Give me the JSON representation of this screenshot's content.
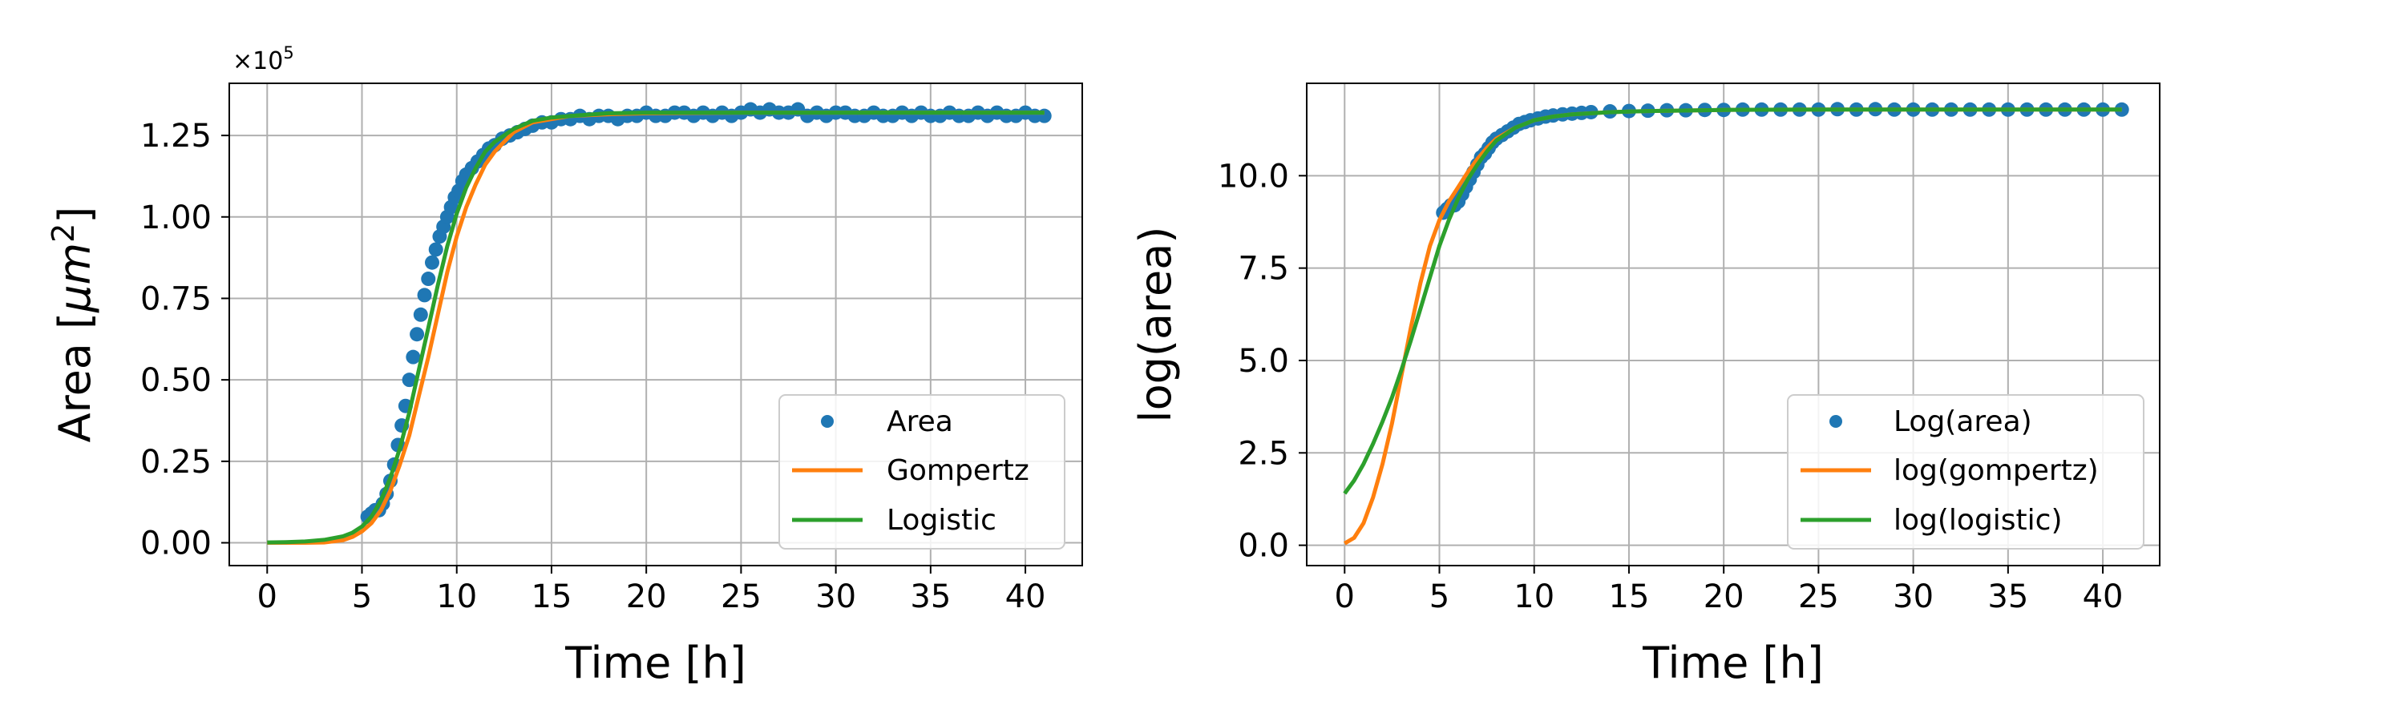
{
  "chart_data": [
    {
      "type": "line",
      "xlabel": "Time [h]",
      "ylabel": "Area [μm²]",
      "ylabel_parts": {
        "text": "Area [",
        "mu": "μ",
        "m": "m",
        "exp": "2",
        "close": "]"
      },
      "offset_text": {
        "base": "×10",
        "exp": "5"
      },
      "xlim": [
        -2,
        43
      ],
      "ylim": [
        -0.07,
        1.41
      ],
      "x_ticks": [
        0,
        5,
        10,
        15,
        20,
        25,
        30,
        35,
        40
      ],
      "x_tick_labels": [
        "0",
        "5",
        "10",
        "15",
        "20",
        "25",
        "30",
        "35",
        "40"
      ],
      "y_ticks": [
        0.0,
        0.25,
        0.5,
        0.75,
        1.0,
        1.25
      ],
      "y_tick_labels": [
        "0.00",
        "0.25",
        "0.50",
        "0.75",
        "1.00",
        "1.25"
      ],
      "grid": true,
      "legend_position": "lower right",
      "series": [
        {
          "name": "Area",
          "kind": "points",
          "color": "#1f77b4",
          "x": [
            5.3,
            5.5,
            5.7,
            5.9,
            6.1,
            6.3,
            6.5,
            6.7,
            6.9,
            7.1,
            7.3,
            7.5,
            7.7,
            7.9,
            8.1,
            8.3,
            8.5,
            8.7,
            8.9,
            9.1,
            9.3,
            9.5,
            9.7,
            9.9,
            10.1,
            10.3,
            10.5,
            10.8,
            11.1,
            11.4,
            11.7,
            12.0,
            12.4,
            12.8,
            13.2,
            13.6,
            14.0,
            14.5,
            15.0,
            15.5,
            16.0,
            16.5,
            17.0,
            17.5,
            18.0,
            18.5,
            19.0,
            19.5,
            20.0,
            20.5,
            21.0,
            21.5,
            22.0,
            22.5,
            23.0,
            23.5,
            24.0,
            24.5,
            25.0,
            25.5,
            26.0,
            26.5,
            27.0,
            27.5,
            28.0,
            28.5,
            29.0,
            29.5,
            30.0,
            30.5,
            31.0,
            31.5,
            32.0,
            32.5,
            33.0,
            33.5,
            34.0,
            34.5,
            35.0,
            35.5,
            36.0,
            36.5,
            37.0,
            37.5,
            38.0,
            38.5,
            39.0,
            39.5,
            40.0,
            40.5,
            41.0
          ],
          "y": [
            0.08,
            0.09,
            0.1,
            0.1,
            0.12,
            0.15,
            0.19,
            0.24,
            0.3,
            0.36,
            0.42,
            0.5,
            0.57,
            0.64,
            0.7,
            0.76,
            0.81,
            0.86,
            0.9,
            0.94,
            0.97,
            1.0,
            1.03,
            1.06,
            1.08,
            1.11,
            1.13,
            1.15,
            1.17,
            1.19,
            1.21,
            1.22,
            1.24,
            1.25,
            1.26,
            1.27,
            1.28,
            1.29,
            1.29,
            1.3,
            1.3,
            1.31,
            1.3,
            1.31,
            1.31,
            1.3,
            1.31,
            1.31,
            1.32,
            1.31,
            1.31,
            1.32,
            1.32,
            1.31,
            1.32,
            1.31,
            1.32,
            1.31,
            1.32,
            1.33,
            1.32,
            1.33,
            1.32,
            1.32,
            1.33,
            1.31,
            1.32,
            1.31,
            1.32,
            1.32,
            1.31,
            1.31,
            1.32,
            1.31,
            1.31,
            1.32,
            1.31,
            1.32,
            1.31,
            1.31,
            1.32,
            1.31,
            1.31,
            1.32,
            1.31,
            1.32,
            1.31,
            1.31,
            1.32,
            1.31,
            1.31
          ]
        },
        {
          "name": "Gompertz",
          "kind": "line",
          "color": "#ff7f0e",
          "x": [
            0,
            1,
            2,
            3,
            4,
            4.5,
            5,
            5.5,
            6,
            6.5,
            7,
            7.5,
            8,
            8.5,
            9,
            9.5,
            10,
            10.5,
            11,
            11.5,
            12,
            13,
            14,
            15,
            16,
            18,
            20,
            25,
            30,
            35,
            41
          ],
          "y": [
            0.0,
            0.0,
            0.0,
            0.001,
            0.008,
            0.018,
            0.035,
            0.06,
            0.1,
            0.16,
            0.24,
            0.33,
            0.45,
            0.57,
            0.7,
            0.83,
            0.94,
            1.03,
            1.1,
            1.16,
            1.2,
            1.26,
            1.29,
            1.3,
            1.31,
            1.315,
            1.318,
            1.32,
            1.32,
            1.32,
            1.32
          ]
        },
        {
          "name": "Logistic",
          "kind": "line",
          "color": "#2ca02c",
          "x": [
            0,
            1,
            2,
            3,
            4,
            4.5,
            5,
            5.5,
            6,
            6.5,
            7,
            7.5,
            8,
            8.5,
            9,
            9.5,
            10,
            10.5,
            11,
            11.5,
            12,
            13,
            14,
            15,
            16,
            18,
            20,
            25,
            30,
            35,
            41
          ],
          "y": [
            0.001,
            0.002,
            0.004,
            0.009,
            0.02,
            0.031,
            0.05,
            0.08,
            0.13,
            0.2,
            0.29,
            0.4,
            0.53,
            0.66,
            0.79,
            0.91,
            1.01,
            1.09,
            1.15,
            1.2,
            1.23,
            1.27,
            1.295,
            1.305,
            1.31,
            1.318,
            1.32,
            1.32,
            1.32,
            1.32,
            1.32
          ]
        }
      ]
    },
    {
      "type": "line",
      "xlabel": "Time [h]",
      "ylabel": "log(area)",
      "xlim": [
        -2,
        43
      ],
      "ylim": [
        -0.55,
        12.5
      ],
      "x_ticks": [
        0,
        5,
        10,
        15,
        20,
        25,
        30,
        35,
        40
      ],
      "x_tick_labels": [
        "0",
        "5",
        "10",
        "15",
        "20",
        "25",
        "30",
        "35",
        "40"
      ],
      "y_ticks": [
        0.0,
        2.5,
        5.0,
        7.5,
        10.0
      ],
      "y_tick_labels": [
        "0.0",
        "2.5",
        "5.0",
        "7.5",
        "10.0"
      ],
      "grid": true,
      "legend_position": "lower right",
      "series": [
        {
          "name": "Log(area)",
          "kind": "points",
          "color": "#1f77b4",
          "x": [
            5.2,
            5.4,
            5.6,
            5.8,
            6.0,
            6.2,
            6.4,
            6.6,
            6.8,
            7.0,
            7.2,
            7.4,
            7.6,
            7.8,
            8.0,
            8.3,
            8.6,
            8.9,
            9.2,
            9.5,
            9.8,
            10.2,
            10.6,
            11.0,
            11.5,
            12.0,
            12.5,
            13.0,
            14.0,
            15.0,
            16.0,
            17.0,
            18.0,
            19.0,
            20.0,
            21.0,
            22.0,
            23.0,
            24.0,
            25.0,
            26.0,
            27.0,
            28.0,
            29.0,
            30.0,
            31.0,
            32.0,
            33.0,
            34.0,
            35.0,
            36.0,
            37.0,
            38.0,
            39.0,
            40.0,
            41.0
          ],
          "y": [
            9.0,
            9.1,
            9.2,
            9.2,
            9.3,
            9.5,
            9.7,
            9.9,
            10.1,
            10.3,
            10.5,
            10.6,
            10.75,
            10.9,
            11.0,
            11.1,
            11.2,
            11.3,
            11.4,
            11.45,
            11.5,
            11.55,
            11.6,
            11.63,
            11.66,
            11.68,
            11.7,
            11.72,
            11.74,
            11.75,
            11.76,
            11.77,
            11.77,
            11.78,
            11.78,
            11.79,
            11.79,
            11.79,
            11.79,
            11.79,
            11.8,
            11.79,
            11.8,
            11.79,
            11.79,
            11.79,
            11.79,
            11.79,
            11.79,
            11.79,
            11.79,
            11.79,
            11.79,
            11.79,
            11.79,
            11.79
          ]
        },
        {
          "name": "log(gompertz)",
          "kind": "line",
          "color": "#ff7f0e",
          "x": [
            0,
            0.5,
            1,
            1.5,
            2,
            2.5,
            3,
            3.5,
            4,
            4.5,
            5,
            5.5,
            6,
            6.5,
            7,
            7.5,
            8,
            9,
            10,
            11,
            12,
            14,
            16,
            20,
            25,
            30,
            35,
            41
          ],
          "y": [
            0.05,
            0.2,
            0.6,
            1.3,
            2.2,
            3.3,
            4.6,
            5.9,
            7.1,
            8.1,
            8.8,
            9.3,
            9.7,
            10.1,
            10.45,
            10.75,
            11.0,
            11.3,
            11.5,
            11.6,
            11.66,
            11.72,
            11.75,
            11.78,
            11.79,
            11.79,
            11.79,
            11.79
          ]
        },
        {
          "name": "log(logistic)",
          "kind": "line",
          "color": "#2ca02c",
          "x": [
            0,
            0.5,
            1,
            1.5,
            2,
            2.5,
            3,
            3.5,
            4,
            4.5,
            5,
            5.5,
            6,
            6.5,
            7,
            7.5,
            8,
            9,
            10,
            11,
            12,
            14,
            16,
            20,
            25,
            30,
            35,
            41
          ],
          "y": [
            1.4,
            1.75,
            2.2,
            2.75,
            3.35,
            4.0,
            4.75,
            5.55,
            6.4,
            7.25,
            8.1,
            8.8,
            9.4,
            9.9,
            10.3,
            10.65,
            10.95,
            11.3,
            11.5,
            11.6,
            11.66,
            11.72,
            11.75,
            11.78,
            11.79,
            11.79,
            11.79,
            11.79
          ]
        }
      ]
    }
  ]
}
